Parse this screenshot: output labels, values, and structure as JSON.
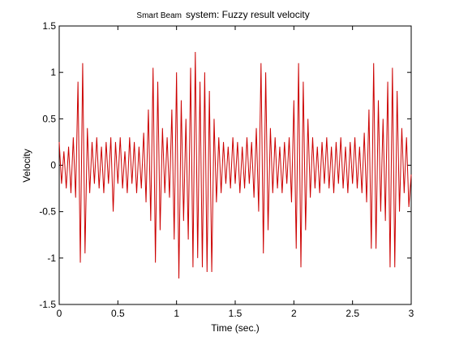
{
  "chart_data": {
    "type": "line",
    "title_small": "Smart Beam",
    "title": "system: Fuzzy result velocity",
    "x_label": "Time (sec.)",
    "y_label": "Velocity",
    "xlim": [
      0,
      3
    ],
    "xticks": [
      0,
      0.5,
      1,
      1.5,
      2,
      2.5,
      3
    ],
    "ylim": [
      -1.5,
      1.5
    ],
    "yticks": [
      -1.5,
      -1,
      -0.5,
      0,
      0.5,
      1,
      1.5
    ],
    "x": [
      0,
      0.02,
      0.04,
      0.06,
      0.08,
      0.1,
      0.12,
      0.14,
      0.16,
      0.18,
      0.2,
      0.22,
      0.24,
      0.26,
      0.28,
      0.3,
      0.32,
      0.34,
      0.36,
      0.38,
      0.4,
      0.42,
      0.44,
      0.46,
      0.48,
      0.5,
      0.52,
      0.54,
      0.56,
      0.58,
      0.6,
      0.62,
      0.64,
      0.66,
      0.68,
      0.7,
      0.72,
      0.74,
      0.76,
      0.78,
      0.8,
      0.82,
      0.84,
      0.86,
      0.88,
      0.9,
      0.92,
      0.94,
      0.96,
      0.98,
      1,
      1.02,
      1.04,
      1.06,
      1.08,
      1.1,
      1.12,
      1.14,
      1.16,
      1.18,
      1.2,
      1.22,
      1.24,
      1.26,
      1.28,
      1.3,
      1.32,
      1.34,
      1.36,
      1.38,
      1.4,
      1.42,
      1.44,
      1.46,
      1.48,
      1.5,
      1.52,
      1.54,
      1.56,
      1.58,
      1.6,
      1.62,
      1.64,
      1.66,
      1.68,
      1.7,
      1.72,
      1.74,
      1.76,
      1.78,
      1.8,
      1.82,
      1.84,
      1.86,
      1.88,
      1.9,
      1.92,
      1.94,
      1.96,
      1.98,
      2,
      2.02,
      2.04,
      2.06,
      2.08,
      2.1,
      2.12,
      2.14,
      2.16,
      2.18,
      2.2,
      2.22,
      2.24,
      2.26,
      2.28,
      2.3,
      2.32,
      2.34,
      2.36,
      2.38,
      2.4,
      2.42,
      2.44,
      2.46,
      2.48,
      2.5,
      2.52,
      2.54,
      2.56,
      2.58,
      2.6,
      2.62,
      2.64,
      2.66,
      2.68,
      2.7,
      2.72,
      2.74,
      2.76,
      2.78,
      2.8,
      2.82,
      2.84,
      2.86,
      2.88,
      2.9,
      2.92,
      2.94,
      2.96,
      2.98,
      3
    ],
    "series": [
      {
        "name": "velocity",
        "color": "#cc0000",
        "values": [
          0.25,
          -0.2,
          0.15,
          -0.25,
          0.2,
          -0.3,
          0.3,
          -0.35,
          0.9,
          -1.05,
          1.1,
          -0.95,
          0.4,
          -0.3,
          0.25,
          -0.2,
          0.3,
          -0.25,
          0.2,
          -0.3,
          0.25,
          -0.2,
          0.3,
          -0.5,
          0.25,
          -0.2,
          0.3,
          -0.25,
          0.15,
          -0.3,
          0.3,
          -0.2,
          0.25,
          -0.3,
          0.2,
          -0.25,
          0.35,
          -0.4,
          0.6,
          -0.6,
          1.05,
          -1.05,
          0.9,
          -0.7,
          0.4,
          -0.3,
          0.3,
          -0.35,
          0.6,
          -0.8,
          1.0,
          -1.22,
          0.7,
          -0.6,
          0.5,
          -0.8,
          1.05,
          -1.1,
          1.22,
          -1.0,
          0.9,
          -1.1,
          1.0,
          -1.15,
          0.8,
          -1.15,
          0.5,
          -0.4,
          0.3,
          -0.3,
          0.25,
          -0.2,
          0.2,
          -0.25,
          0.3,
          -0.2,
          0.25,
          -0.3,
          0.2,
          -0.25,
          0.3,
          -0.2,
          0.25,
          -0.35,
          0.4,
          -0.5,
          1.1,
          -0.95,
          1.0,
          -0.7,
          0.4,
          -0.3,
          0.3,
          -0.25,
          0.2,
          -0.3,
          0.25,
          -0.2,
          0.3,
          -0.4,
          0.7,
          -0.9,
          1.1,
          -1.1,
          0.9,
          -0.7,
          0.5,
          -0.35,
          0.3,
          -0.25,
          0.2,
          -0.3,
          0.25,
          -0.2,
          0.3,
          -0.25,
          0.2,
          -0.3,
          0.25,
          -0.2,
          0.3,
          -0.25,
          0.2,
          -0.3,
          0.25,
          -0.2,
          0.3,
          -0.25,
          0.2,
          -0.3,
          0.35,
          -0.4,
          0.6,
          -0.9,
          1.1,
          -0.9,
          0.7,
          -0.5,
          0.5,
          -0.6,
          0.9,
          -1.1,
          1.05,
          -1.1,
          0.8,
          -0.5,
          0.4,
          -0.3,
          0.3,
          -0.45,
          -0.1
        ]
      }
    ]
  }
}
